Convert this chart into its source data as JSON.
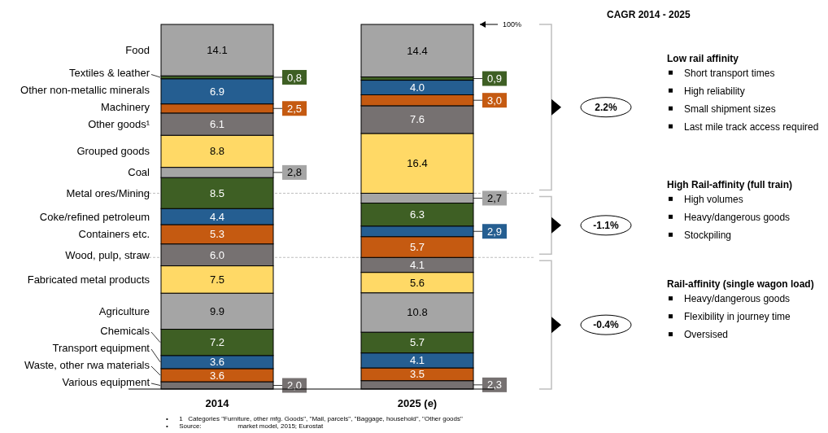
{
  "chart_data": {
    "type": "bar",
    "stacked": true,
    "legend": "left",
    "categories": [
      "2014",
      "2025 (e)"
    ],
    "ylim": [
      0,
      100
    ],
    "tick_labels": "x",
    "series": [
      {
        "name": "Various equipment",
        "color": "#767171",
        "values": [
          2.0,
          2.3
        ],
        "value_labels": [
          "2,0",
          "2,3"
        ]
      },
      {
        "name": "Waste, other rwa materials",
        "color": "#c55a11",
        "values": [
          3.6,
          3.5
        ],
        "value_labels": [
          "3.6",
          "3.5"
        ]
      },
      {
        "name": "Transport equipment",
        "color": "#255e91",
        "values": [
          3.6,
          4.1
        ],
        "value_labels": [
          "3.6",
          "4.1"
        ]
      },
      {
        "name": "Chemicals",
        "color": "#3e5f24",
        "values": [
          7.2,
          5.7
        ],
        "value_labels": [
          "7.2",
          "5.7"
        ]
      },
      {
        "name": "Agriculture",
        "color": "#a5a5a5",
        "values": [
          9.9,
          10.8
        ],
        "value_labels": [
          "9.9",
          "10.8"
        ]
      },
      {
        "name": "Fabricated metal products",
        "color": "#ffd966",
        "values": [
          7.5,
          5.6
        ],
        "value_labels": [
          "7.5",
          "5.6"
        ]
      },
      {
        "name": "Wood, pulp, straw",
        "color": "#767171",
        "values": [
          6.0,
          4.1
        ],
        "value_labels": [
          "6.0",
          "4.1"
        ]
      },
      {
        "name": "Containers etc.",
        "color": "#c55a11",
        "values": [
          5.3,
          5.7
        ],
        "value_labels": [
          "5.3",
          "5.7"
        ]
      },
      {
        "name": "Coke/refined petroleum",
        "color": "#255e91",
        "values": [
          4.4,
          2.9
        ],
        "value_labels": [
          "4.4",
          "2,9"
        ]
      },
      {
        "name": "Metal ores/Mining",
        "color": "#3e5f24",
        "values": [
          8.5,
          6.3
        ],
        "value_labels": [
          "8.5",
          "6.3"
        ]
      },
      {
        "name": "Coal",
        "color": "#a5a5a5",
        "values": [
          2.8,
          2.7
        ],
        "value_labels": [
          "2,8",
          "2,7"
        ]
      },
      {
        "name": "Grouped goods",
        "color": "#ffd966",
        "values": [
          8.8,
          16.4
        ],
        "value_labels": [
          "8.8",
          "16.4"
        ]
      },
      {
        "name": "Other goods¹",
        "color": "#767171",
        "values": [
          6.1,
          7.6
        ],
        "value_labels": [
          "6.1",
          "7.6"
        ]
      },
      {
        "name": "Machinery",
        "color": "#c55a11",
        "values": [
          2.5,
          3.0
        ],
        "value_labels": [
          "2,5",
          "3,0"
        ]
      },
      {
        "name": "Other non-metallic minerals",
        "color": "#255e91",
        "values": [
          6.9,
          4.0
        ],
        "value_labels": [
          "6.9",
          "4.0"
        ]
      },
      {
        "name": "Textiles & leather",
        "color": "#3e5f24",
        "values": [
          0.8,
          0.9
        ],
        "value_labels": [
          "0,8",
          "0,9"
        ]
      },
      {
        "name": "Food",
        "color": "#a5a5a5",
        "values": [
          14.1,
          14.4
        ],
        "value_labels": [
          "14.1",
          "14.4"
        ]
      }
    ],
    "ref_lines": [
      {
        "axis": "y",
        "value": 53.7,
        "color": "#bfbfbf",
        "line_style": "dashed"
      },
      {
        "axis": "y",
        "value": 36.1,
        "color": "#bfbfbf",
        "line_style": "dashed"
      }
    ],
    "annotations": [
      "•      1   Categories \"Furniture, other mfg. Goods\", \"Mail, parcels\", \"Baggage, household\", \"Other goods\"",
      "•      Source:                    market model, 2015; Eurostat",
      "CAGR 2014 - 2025",
      "100%",
      "2.2%",
      "Low rail affinity",
      "Short transport times",
      "High reliability",
      "Small shipment sizes",
      "Last mile track access required",
      "-1.1%",
      "High Rail-affinity (full train)",
      "High volumes",
      "Heavy/dangerous goods",
      "Stockpiling",
      "-0.4%",
      "Rail-affinity (single wagon load)",
      "Heavy/dangerous goods",
      "Flexibility in journey time",
      "Oversised"
    ]
  }
}
